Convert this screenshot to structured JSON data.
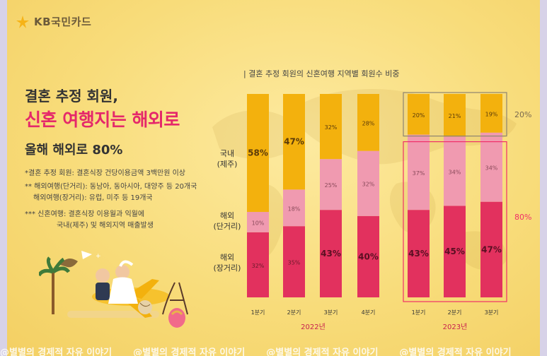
{
  "brand": {
    "name": "KB국민카드"
  },
  "headline": {
    "line1": "결혼 추정 회원,",
    "line2": "신혼 여행지는 해외로",
    "line3": "올해 해외로 80%"
  },
  "notes": {
    "n1": "*결혼 추정 회원: 결혼식장 건당이용금액 3백만원 이상",
    "n2a": "** 해외여행(단거리): 동남아, 동아시아, 대양주 등 20개국",
    "n2b": "해외여행(장거리): 유럽, 미주 등 19개국",
    "n3a": "*** 신혼여행: 결혼식장 이용월과 익월에",
    "n3b": "국내(제주) 및 해외지역 매출발생"
  },
  "row_labels": {
    "domestic": [
      "국내",
      "(제주)"
    ],
    "short": [
      "해외",
      "(단거리)"
    ],
    "long": [
      "해외",
      "(장거리)"
    ]
  },
  "colors": {
    "domestic": "#f3b10d",
    "short": "#f09ab0",
    "long": "#e2315e",
    "box_2023_domestic": "#8d8470",
    "box_2023_overseas": "#f02f68"
  },
  "chart_data": {
    "type": "bar",
    "stacked": true,
    "normalized": true,
    "title": "| 결혼 추정 회원의 신혼여행 지역별 회원수 비중",
    "categories": [
      "1분기",
      "2분기",
      "3분기",
      "4분기",
      "1분기",
      "2분기",
      "3분기"
    ],
    "groups": [
      {
        "label": "2022년",
        "categories": [
          0,
          1,
          2,
          3
        ]
      },
      {
        "label": "2023년",
        "categories": [
          4,
          5,
          6
        ]
      }
    ],
    "series": [
      {
        "name": "해외(장거리)",
        "values": [
          32,
          35,
          43,
          40,
          43,
          45,
          47
        ],
        "labels": [
          "32%",
          "35%",
          "43%",
          "40%",
          "43%",
          "45%",
          "47%"
        ]
      },
      {
        "name": "해외(단거리)",
        "values": [
          10,
          18,
          25,
          32,
          37,
          34,
          34
        ],
        "labels": [
          "10%",
          "18%",
          "25%",
          "32%",
          "37%",
          "34%",
          "34%"
        ]
      },
      {
        "name": "국내(제주)",
        "values": [
          58,
          47,
          32,
          28,
          20,
          21,
          19
        ],
        "labels": [
          "58%",
          "47%",
          "32%",
          "28%",
          "20%",
          "21%",
          "19%"
        ]
      }
    ],
    "annotations": {
      "domestic_2023": "20%",
      "overseas_2023": "80%"
    }
  },
  "watermark": {
    "text": "@별별의 경제적 자유 이야기"
  }
}
